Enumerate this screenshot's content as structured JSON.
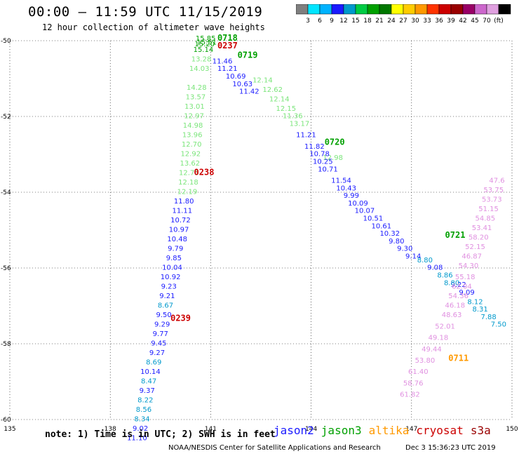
{
  "header": {
    "title": "00:00 – 11:59 UTC 11/15/2019",
    "subtitle": "12 hour collection of altimeter wave heights"
  },
  "colorbar": {
    "colors": [
      "#7f7f7f",
      "#00e5ff",
      "#00b3ff",
      "#1a1aff",
      "#0099cc",
      "#00cc44",
      "#00a000",
      "#007700",
      "#ffff00",
      "#ffcc00",
      "#ff9900",
      "#ff3300",
      "#cc0000",
      "#990000",
      "#990066",
      "#cc66cc",
      "#e0a0e0",
      "#000000"
    ],
    "labels": [
      "3",
      "6",
      "9",
      "12",
      "15",
      "18",
      "21",
      "24",
      "27",
      "30",
      "33",
      "36",
      "39",
      "42",
      "45",
      "70",
      "(ft)"
    ]
  },
  "footer": {
    "note": "note: 1) Time is in UTC; 2) SWH is in feet",
    "legend": [
      {
        "name": "jason2",
        "color": "#1a1aff"
      },
      {
        "name": "jason3",
        "color": "#00a000"
      },
      {
        "name": "altika",
        "color": "#ff9900"
      },
      {
        "name": "cryosat",
        "color": "#cc0000"
      },
      {
        "name": "s3a",
        "color": "#990000"
      }
    ],
    "credit": "NOAA/NESDIS Center for Satellite Applications and Research",
    "timestamp": "Dec  3 15:36:23 UTC 2019"
  },
  "chart_data": {
    "type": "scatter",
    "xlim": [
      135,
      150
    ],
    "ylim": [
      -60,
      -50
    ],
    "xticks": [
      "135",
      "138",
      "141",
      "144",
      "147",
      "150"
    ],
    "yticks": [
      "-50",
      "-52",
      "-54",
      "-56",
      "-58",
      "-60"
    ],
    "grid": true,
    "annotations": [
      {
        "text": "0718",
        "x": 141.2,
        "y": -50.0,
        "color": "#00a000"
      },
      {
        "text": "0237",
        "x": 141.2,
        "y": -50.2,
        "color": "#cc0000"
      },
      {
        "text": "0719",
        "x": 141.8,
        "y": -50.45,
        "color": "#00a000"
      },
      {
        "text": "0720",
        "x": 144.4,
        "y": -52.75,
        "color": "#00a000"
      },
      {
        "text": "0721",
        "x": 148.0,
        "y": -55.2,
        "color": "#00a000"
      },
      {
        "text": "0238",
        "x": 140.5,
        "y": -53.55,
        "color": "#cc0000"
      },
      {
        "text": "0239",
        "x": 139.8,
        "y": -57.4,
        "color": "#cc0000"
      },
      {
        "text": "0711",
        "x": 148.1,
        "y": -58.45,
        "color": "#ff9900"
      }
    ],
    "series": [
      {
        "satellite": "jason3",
        "color_default": "#7be57b",
        "points": [
          {
            "x": 140.85,
            "y": -50.0,
            "v": "15.85",
            "c": "#00a000"
          },
          {
            "x": 140.88,
            "y": -50.1,
            "v": "15.51",
            "c": "#00a000"
          },
          {
            "x": 140.82,
            "y": -50.15,
            "v": "15.20",
            "c": "#00a000"
          },
          {
            "x": 140.78,
            "y": -50.3,
            "v": "15.14",
            "c": "#00a000"
          },
          {
            "x": 140.72,
            "y": -50.55,
            "v": "13.28"
          },
          {
            "x": 140.66,
            "y": -50.8,
            "v": "14.03"
          },
          {
            "x": 140.58,
            "y": -51.3,
            "v": "14.28"
          },
          {
            "x": 140.55,
            "y": -51.55,
            "v": "13.57"
          },
          {
            "x": 140.52,
            "y": -51.8,
            "v": "13.01"
          },
          {
            "x": 140.5,
            "y": -52.05,
            "v": "12.97"
          },
          {
            "x": 140.47,
            "y": -52.3,
            "v": "14.98"
          },
          {
            "x": 140.45,
            "y": -52.55,
            "v": "13.96"
          },
          {
            "x": 140.43,
            "y": -52.8,
            "v": "12.70"
          },
          {
            "x": 140.4,
            "y": -53.05,
            "v": "12.92"
          },
          {
            "x": 140.38,
            "y": -53.3,
            "v": "13.62"
          },
          {
            "x": 140.35,
            "y": -53.55,
            "v": "12.73"
          },
          {
            "x": 140.33,
            "y": -53.8,
            "v": "12.18"
          },
          {
            "x": 140.3,
            "y": -54.05,
            "v": "12.19"
          },
          {
            "x": 142.55,
            "y": -51.1,
            "v": "12.14"
          },
          {
            "x": 142.85,
            "y": -51.35,
            "v": "12.62"
          },
          {
            "x": 143.05,
            "y": -51.6,
            "v": "12.14"
          },
          {
            "x": 143.25,
            "y": -51.85,
            "v": "12.15"
          },
          {
            "x": 143.45,
            "y": -52.05,
            "v": "11.36"
          },
          {
            "x": 143.65,
            "y": -52.25,
            "v": "13.17"
          },
          {
            "x": 144.65,
            "y": -53.15,
            "v": "12.98"
          }
        ]
      },
      {
        "satellite": "jason2",
        "color_default": "#1a1aff",
        "points": [
          {
            "x": 141.35,
            "y": -50.6,
            "v": "11.46"
          },
          {
            "x": 141.5,
            "y": -50.8,
            "v": "11.21"
          },
          {
            "x": 141.75,
            "y": -51.0,
            "v": "10.69"
          },
          {
            "x": 141.95,
            "y": -51.2,
            "v": "10.63"
          },
          {
            "x": 142.15,
            "y": -51.4,
            "v": "11.42"
          },
          {
            "x": 143.85,
            "y": -52.55,
            "v": "11.21"
          },
          {
            "x": 144.1,
            "y": -52.85,
            "v": "11.82"
          },
          {
            "x": 144.25,
            "y": -53.05,
            "v": "10.78"
          },
          {
            "x": 144.35,
            "y": -53.25,
            "v": "10.25"
          },
          {
            "x": 144.5,
            "y": -53.45,
            "v": "10.71"
          },
          {
            "x": 144.9,
            "y": -53.75,
            "v": "11.54"
          },
          {
            "x": 145.05,
            "y": -53.95,
            "v": "10.43"
          },
          {
            "x": 145.2,
            "y": -54.15,
            "v": "9.99"
          },
          {
            "x": 145.4,
            "y": -54.35,
            "v": "10.09"
          },
          {
            "x": 145.6,
            "y": -54.55,
            "v": "10.07"
          },
          {
            "x": 145.85,
            "y": -54.75,
            "v": "10.51"
          },
          {
            "x": 146.1,
            "y": -54.95,
            "v": "10.61"
          },
          {
            "x": 146.35,
            "y": -55.15,
            "v": "10.32"
          },
          {
            "x": 146.55,
            "y": -55.35,
            "v": "9.80"
          },
          {
            "x": 146.8,
            "y": -55.55,
            "v": "9.30"
          },
          {
            "x": 147.05,
            "y": -55.75,
            "v": "9.14"
          },
          {
            "x": 147.7,
            "y": -56.05,
            "v": "9.08"
          },
          {
            "x": 148.4,
            "y": -56.5,
            "v": "9.22"
          },
          {
            "x": 148.65,
            "y": -56.7,
            "v": "9.09"
          },
          {
            "x": 140.2,
            "y": -54.3,
            "v": "11.80"
          },
          {
            "x": 140.15,
            "y": -54.55,
            "v": "11.11"
          },
          {
            "x": 140.1,
            "y": -54.8,
            "v": "10.72"
          },
          {
            "x": 140.05,
            "y": -55.05,
            "v": "10.97"
          },
          {
            "x": 140.0,
            "y": -55.3,
            "v": "10.48"
          },
          {
            "x": 139.95,
            "y": -55.55,
            "v": "9.79"
          },
          {
            "x": 139.9,
            "y": -55.8,
            "v": "9.85"
          },
          {
            "x": 139.85,
            "y": -56.05,
            "v": "10.04"
          },
          {
            "x": 139.8,
            "y": -56.3,
            "v": "10.92"
          },
          {
            "x": 139.75,
            "y": -56.55,
            "v": "9.23"
          },
          {
            "x": 139.7,
            "y": -56.8,
            "v": "9.21"
          },
          {
            "x": 139.6,
            "y": -57.3,
            "v": "9.50"
          },
          {
            "x": 139.55,
            "y": -57.55,
            "v": "9.29"
          },
          {
            "x": 139.5,
            "y": -57.8,
            "v": "9.77"
          },
          {
            "x": 139.45,
            "y": -58.05,
            "v": "9.45"
          },
          {
            "x": 139.4,
            "y": -58.3,
            "v": "9.27"
          },
          {
            "x": 139.2,
            "y": -58.8,
            "v": "10.14"
          },
          {
            "x": 139.1,
            "y": -59.3,
            "v": "9.37"
          },
          {
            "x": 138.9,
            "y": -60.3,
            "v": "9.02"
          },
          {
            "x": 138.8,
            "y": -60.55,
            "v": "11.10"
          },
          {
            "x": 139.65,
            "y": -57.05,
            "v": "8.67",
            "c": "#0099cc"
          },
          {
            "x": 139.3,
            "y": -58.55,
            "v": "8.69",
            "c": "#0099cc"
          },
          {
            "x": 139.15,
            "y": -59.05,
            "v": "8.47",
            "c": "#0099cc"
          },
          {
            "x": 139.05,
            "y": -59.55,
            "v": "8.22",
            "c": "#0099cc"
          },
          {
            "x": 139.0,
            "y": -59.8,
            "v": "8.56",
            "c": "#0099cc"
          },
          {
            "x": 138.95,
            "y": -60.05,
            "v": "8.34",
            "c": "#0099cc"
          },
          {
            "x": 147.4,
            "y": -55.85,
            "v": "8.80",
            "c": "#0099cc"
          },
          {
            "x": 148.0,
            "y": -56.25,
            "v": "8.86",
            "c": "#0099cc"
          },
          {
            "x": 148.2,
            "y": -56.45,
            "v": "8.80",
            "c": "#0099cc"
          },
          {
            "x": 148.9,
            "y": -56.95,
            "v": "8.12",
            "c": "#0099cc"
          },
          {
            "x": 149.05,
            "y": -57.15,
            "v": "8.31",
            "c": "#0099cc"
          },
          {
            "x": 149.3,
            "y": -57.35,
            "v": "7.88",
            "c": "#0099cc"
          },
          {
            "x": 149.6,
            "y": -57.55,
            "v": "7.50",
            "c": "#0099cc"
          }
        ]
      },
      {
        "satellite": "altika",
        "color_default": "#e090e0",
        "points": [
          {
            "x": 149.55,
            "y": -53.75,
            "v": "47.6"
          },
          {
            "x": 149.45,
            "y": -54.0,
            "v": "53.75"
          },
          {
            "x": 149.4,
            "y": -54.25,
            "v": "53.73"
          },
          {
            "x": 149.3,
            "y": -54.5,
            "v": "51.15"
          },
          {
            "x": 149.2,
            "y": -54.75,
            "v": "54.85"
          },
          {
            "x": 149.1,
            "y": -55.0,
            "v": "53.41"
          },
          {
            "x": 149.0,
            "y": -55.25,
            "v": "58.20"
          },
          {
            "x": 148.9,
            "y": -55.5,
            "v": "52.15"
          },
          {
            "x": 148.8,
            "y": -55.75,
            "v": "46.87"
          },
          {
            "x": 148.7,
            "y": -56.0,
            "v": "54.30"
          },
          {
            "x": 148.6,
            "y": -56.3,
            "v": "55.18"
          },
          {
            "x": 148.5,
            "y": -56.55,
            "v": "62.04"
          },
          {
            "x": 148.4,
            "y": -56.8,
            "v": "54.36"
          },
          {
            "x": 148.3,
            "y": -57.05,
            "v": "46.18"
          },
          {
            "x": 148.2,
            "y": -57.3,
            "v": "48.63"
          },
          {
            "x": 148.0,
            "y": -57.6,
            "v": "52.01"
          },
          {
            "x": 147.8,
            "y": -57.9,
            "v": "49.18"
          },
          {
            "x": 147.6,
            "y": -58.2,
            "v": "49.44"
          },
          {
            "x": 147.4,
            "y": -58.5,
            "v": "53.80"
          },
          {
            "x": 147.2,
            "y": -58.8,
            "v": "61.40"
          },
          {
            "x": 147.05,
            "y": -59.1,
            "v": "58.76"
          },
          {
            "x": 146.95,
            "y": -59.4,
            "v": "61.82"
          }
        ]
      }
    ]
  }
}
